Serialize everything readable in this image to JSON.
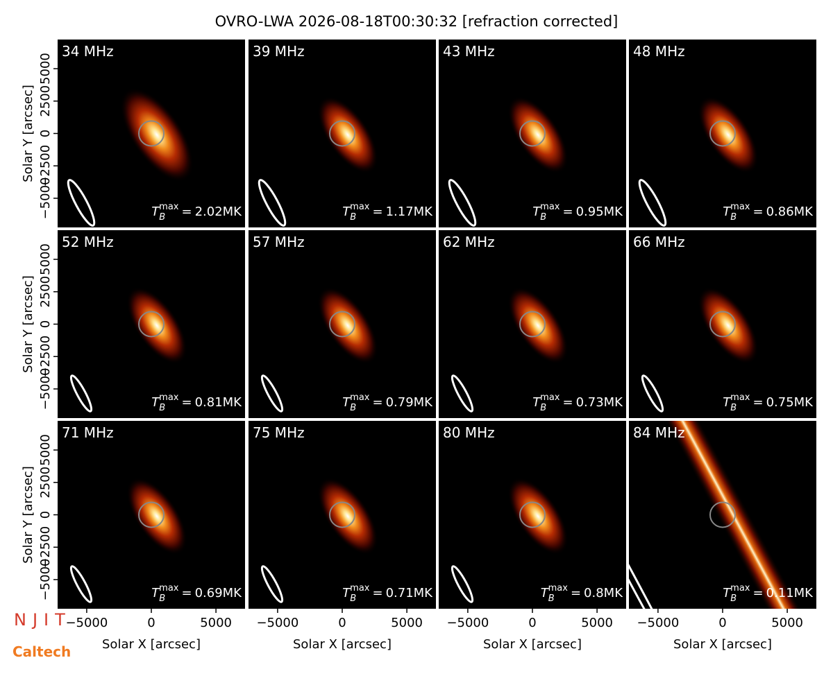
{
  "chart_data": {
    "type": "image-grid",
    "title": "OVRO-LWA 2026-08-18T00:30:32 [refraction corrected]",
    "xlabel": "Solar X [arcsec]",
    "ylabel": "Solar Y [arcsec]",
    "xlim": [
      -7250,
      7250
    ],
    "ylim": [
      -7250,
      7250
    ],
    "xticks": [
      {
        "value": -5000,
        "label": "−5000"
      },
      0,
      5000
    ],
    "yticks": [
      {
        "value": -5000,
        "label": "−5000"
      },
      {
        "value": -2500,
        "label": "−2500"
      },
      0,
      2500,
      5000
    ],
    "tb_symbol": "T",
    "tb_sub": "B",
    "tb_sup": "max",
    "tb_equals": "=",
    "panels": [
      {
        "frequency": "34 MHz",
        "tb_max": "2.02MK"
      },
      {
        "frequency": "39 MHz",
        "tb_max": "1.17MK"
      },
      {
        "frequency": "43 MHz",
        "tb_max": "0.95MK"
      },
      {
        "frequency": "48 MHz",
        "tb_max": "0.86MK"
      },
      {
        "frequency": "52 MHz",
        "tb_max": "0.81MK"
      },
      {
        "frequency": "57 MHz",
        "tb_max": "0.79MK"
      },
      {
        "frequency": "62 MHz",
        "tb_max": "0.73MK"
      },
      {
        "frequency": "66 MHz",
        "tb_max": "0.75MK"
      },
      {
        "frequency": "71 MHz",
        "tb_max": "0.69MK"
      },
      {
        "frequency": "75 MHz",
        "tb_max": "0.71MK"
      },
      {
        "frequency": "80 MHz",
        "tb_max": "0.8MK"
      },
      {
        "frequency": "84 MHz",
        "tb_max": "0.11MK"
      }
    ],
    "logos": [
      "NJIT",
      "Caltech"
    ]
  }
}
